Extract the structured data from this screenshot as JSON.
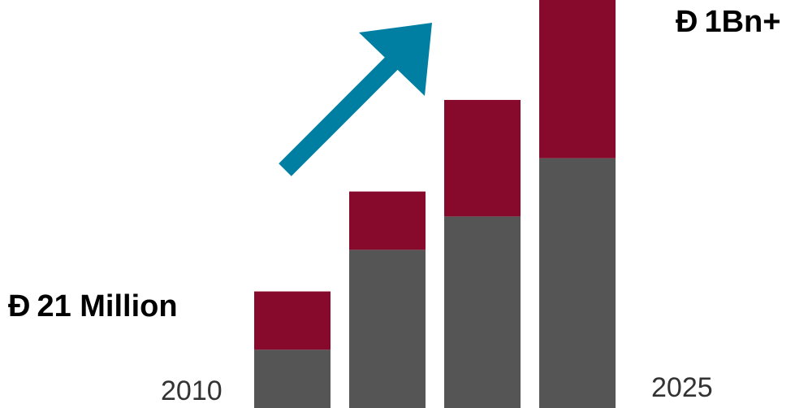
{
  "chart_data": {
    "type": "bar",
    "stacked": true,
    "categories": [
      "2010",
      "",
      "",
      "2025"
    ],
    "series": [
      {
        "values": [
          0.7,
          1.9,
          2.3,
          3.0
        ],
        "color": "#555555"
      },
      {
        "values": [
          0.7,
          0.7,
          1.4,
          1.9
        ],
        "color": "#870A2D"
      }
    ],
    "ylim": [
      0,
      4.9
    ],
    "annotations": {
      "start_value": {
        "symbol": "Ð",
        "text": "21 Million"
      },
      "end_value": {
        "symbol": "Ð",
        "text": "1Bn+"
      },
      "start_year": "2010",
      "end_year": "2025"
    },
    "arrow": {
      "direction": "up-right",
      "color": "#007FA3"
    }
  }
}
